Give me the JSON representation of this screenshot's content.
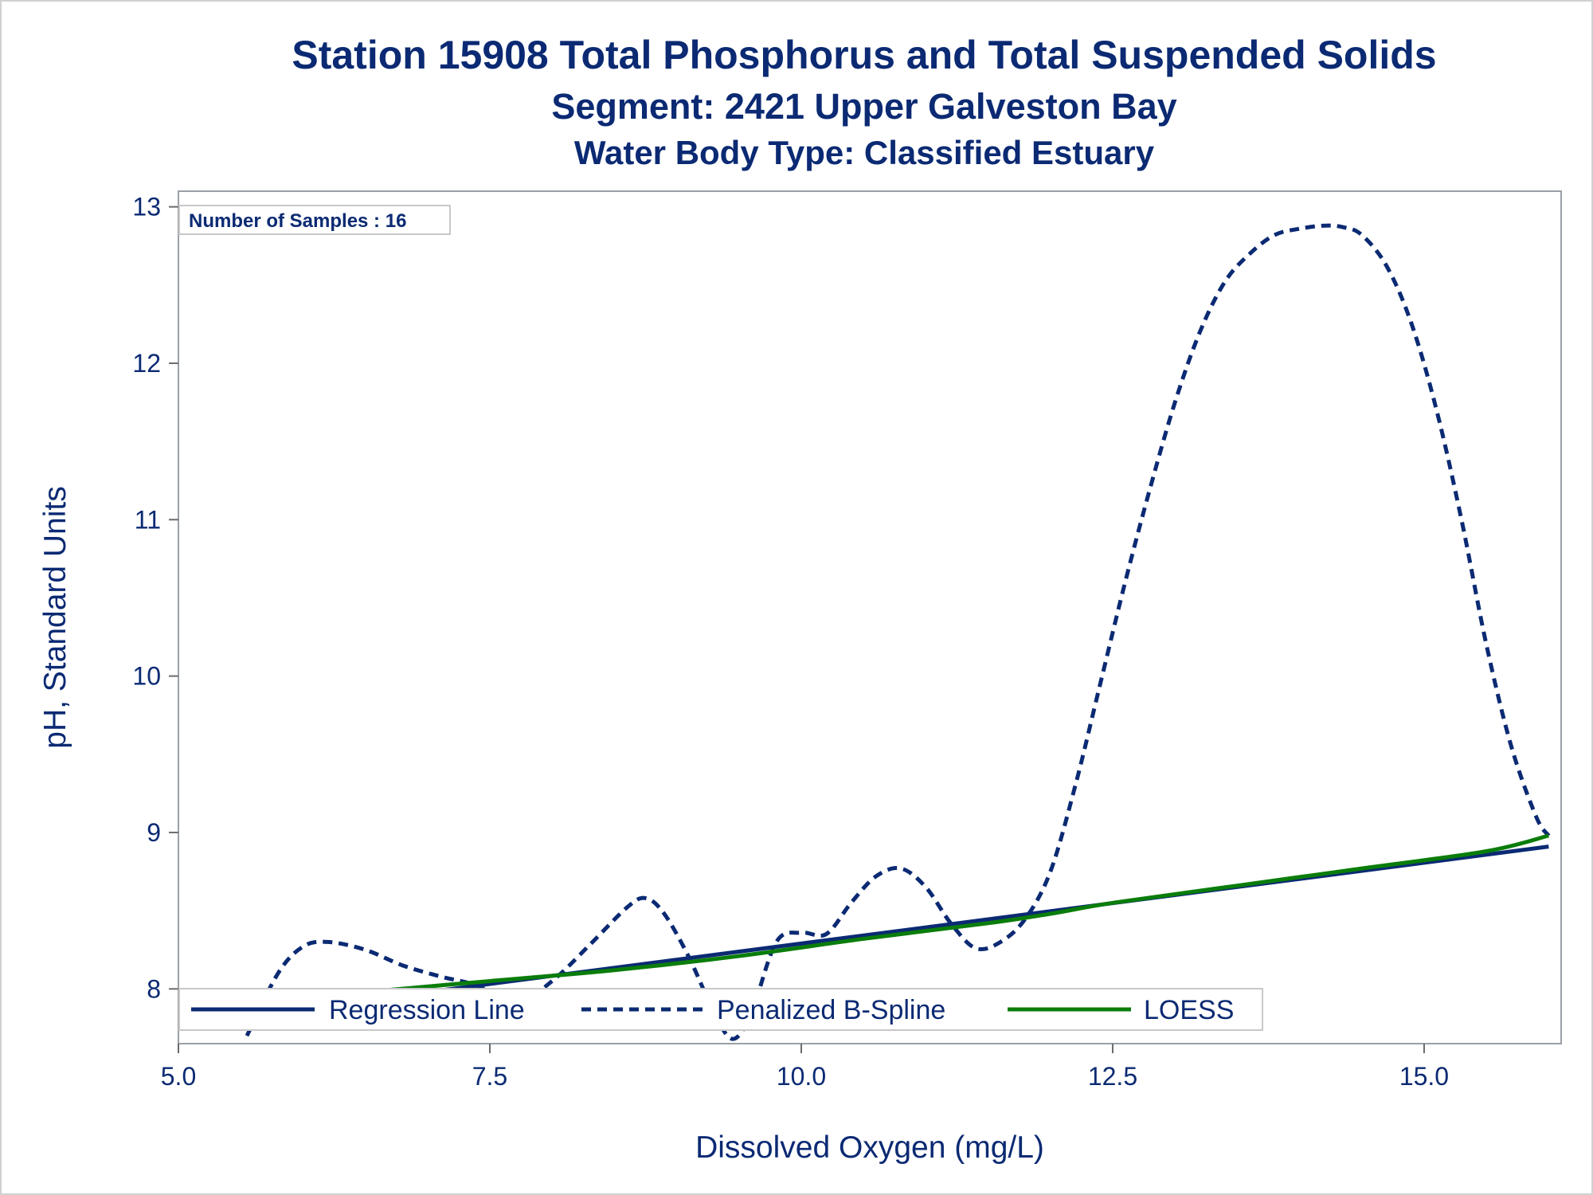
{
  "chart_data": {
    "type": "line",
    "title": "Station 15908  Total Phosphorus and Total Suspended Solids",
    "subtitle": "Segment: 2421  Upper Galveston Bay",
    "subtitle2": "Water Body Type: Classified Estuary",
    "xlabel": "Dissolved Oxygen (mg/L)",
    "ylabel": "pH, Standard Units",
    "xlim": [
      5.0,
      16.1
    ],
    "ylim": [
      7.65,
      13.1
    ],
    "x_ticks": [
      5.0,
      7.5,
      10.0,
      12.5,
      15.0
    ],
    "x_tick_labels": [
      "5.0",
      "7.5",
      "10.0",
      "12.5",
      "15.0"
    ],
    "y_ticks": [
      8,
      9,
      10,
      11,
      12,
      13
    ],
    "y_tick_labels": [
      "8",
      "9",
      "10",
      "11",
      "12",
      "13"
    ],
    "inset_text": "Number of Samples : 16",
    "legend_position": "bottom-inside",
    "grid": false,
    "series": [
      {
        "name": "Regression Line",
        "style": "solid",
        "color": "#0b2a73",
        "x": [
          5.55,
          16.0
        ],
        "y": [
          7.83,
          8.91
        ]
      },
      {
        "name": "Penalized B-Spline",
        "style": "dashed",
        "color": "#0b2a73",
        "x": [
          5.55,
          5.8,
          6.0,
          6.2,
          6.5,
          6.8,
          7.1,
          7.4,
          7.7,
          8.0,
          8.3,
          8.6,
          8.75,
          8.9,
          9.1,
          9.3,
          9.45,
          9.6,
          9.8,
          10.0,
          10.2,
          10.4,
          10.6,
          10.8,
          11.0,
          11.2,
          11.4,
          11.6,
          11.8,
          12.0,
          12.2,
          12.4,
          12.6,
          12.8,
          13.0,
          13.2,
          13.4,
          13.6,
          13.8,
          14.0,
          14.2,
          14.35,
          14.5,
          14.7,
          14.9,
          15.1,
          15.3,
          15.5,
          15.7,
          15.9,
          16.0
        ],
        "y": [
          7.7,
          8.1,
          8.27,
          8.3,
          8.25,
          8.15,
          8.08,
          8.02,
          7.9,
          8.05,
          8.28,
          8.52,
          8.58,
          8.48,
          8.2,
          7.85,
          7.68,
          7.85,
          8.3,
          8.36,
          8.35,
          8.55,
          8.72,
          8.77,
          8.65,
          8.42,
          8.26,
          8.3,
          8.45,
          8.75,
          9.3,
          9.95,
          10.6,
          11.2,
          11.75,
          12.2,
          12.52,
          12.7,
          12.82,
          12.86,
          12.88,
          12.87,
          12.82,
          12.62,
          12.25,
          11.7,
          11.0,
          10.2,
          9.55,
          9.1,
          8.98
        ]
      },
      {
        "name": "LOESS",
        "style": "solid",
        "color": "#0a7d0a",
        "x": [
          5.55,
          6.5,
          7.5,
          8.5,
          9.5,
          10.5,
          11.5,
          12.0,
          12.5,
          13.5,
          14.5,
          15.5,
          16.0
        ],
        "y": [
          7.91,
          7.98,
          8.05,
          8.12,
          8.21,
          8.32,
          8.42,
          8.48,
          8.55,
          8.66,
          8.77,
          8.88,
          8.98
        ]
      }
    ]
  }
}
